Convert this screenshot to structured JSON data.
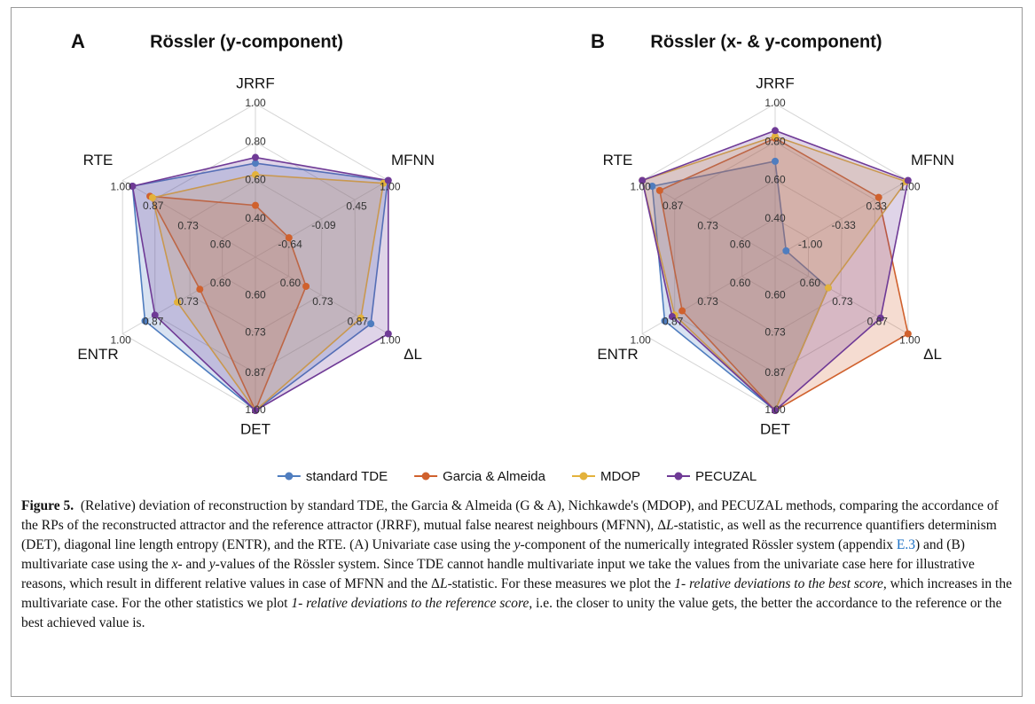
{
  "chart_data": [
    {
      "type": "radar",
      "panel": "A",
      "title": "Rössler (y-component)",
      "axes": [
        {
          "name": "JRRF",
          "lim": [
            0.2,
            1.0
          ],
          "ticks": [
            {
              "value": 0.4,
              "label": "0.40"
            },
            {
              "value": 0.6,
              "label": "0.60"
            },
            {
              "value": 0.8,
              "label": "0.80"
            },
            {
              "value": 1.0,
              "label": "1.00"
            }
          ]
        },
        {
          "name": "MFNN",
          "lim": [
            -1.18,
            1.0
          ],
          "ticks": [
            -0.64,
            -0.09,
            0.45,
            {
              "value": 1.0,
              "label": "1.00"
            }
          ]
        },
        {
          "name": "ΔL",
          "lim": [
            0.467,
            1.0
          ],
          "ticks": [
            {
              "value": 0.6,
              "label": "0.60"
            },
            0.73,
            0.87,
            {
              "value": 1.0,
              "label": "1.00"
            }
          ]
        },
        {
          "name": "DET",
          "lim": [
            0.467,
            1.0
          ],
          "ticks": [
            {
              "value": 0.6,
              "label": "0.60"
            },
            0.73,
            0.87,
            {
              "value": 1.0,
              "label": "1.00"
            }
          ]
        },
        {
          "name": "ENTR",
          "lim": [
            0.467,
            1.0
          ],
          "ticks": [
            {
              "value": 0.6,
              "label": "0.60"
            },
            0.73,
            0.87,
            {
              "value": 1.0,
              "label": "1.00"
            }
          ]
        },
        {
          "name": "RTE",
          "lim": [
            0.467,
            1.0
          ],
          "ticks": [
            {
              "value": 0.6,
              "label": "0.60"
            },
            0.73,
            0.87,
            {
              "value": 1.0,
              "label": "1.00"
            }
          ]
        }
      ],
      "series": [
        {
          "name": "standard TDE",
          "color": "#4f7dbf",
          "values": [
            0.69,
            0.99,
            0.93,
            1.0,
            0.91,
            0.96
          ]
        },
        {
          "name": "Garcia & Almeida",
          "color": "#d0612d",
          "values": [
            0.47,
            -0.63,
            0.67,
            1.0,
            0.69,
            0.89
          ]
        },
        {
          "name": "MDOP",
          "color": "#e3b23c",
          "values": [
            0.63,
            0.92,
            0.89,
            1.0,
            0.78,
            0.88
          ]
        },
        {
          "name": "PECUZAL",
          "color": "#6f3a96",
          "values": [
            0.72,
            1.0,
            1.0,
            1.0,
            0.87,
            0.96
          ]
        }
      ]
    },
    {
      "type": "radar",
      "panel": "B",
      "title": "Rössler (x- & y-component)",
      "axes": [
        {
          "name": "JRRF",
          "lim": [
            0.2,
            1.0
          ],
          "ticks": [
            {
              "value": 0.4,
              "label": "0.40"
            },
            {
              "value": 0.6,
              "label": "0.60"
            },
            {
              "value": 0.8,
              "label": "0.80"
            },
            {
              "value": 1.0,
              "label": "1.00"
            }
          ]
        },
        {
          "name": "MFNN",
          "lim": [
            -1.67,
            1.0
          ],
          "ticks": [
            {
              "value": -1.0,
              "label": "-1.00"
            },
            -0.33,
            0.33,
            {
              "value": 1.0,
              "label": "1.00"
            }
          ]
        },
        {
          "name": "ΔL",
          "lim": [
            0.467,
            1.0
          ],
          "ticks": [
            {
              "value": 0.6,
              "label": "0.60"
            },
            0.73,
            0.87,
            {
              "value": 1.0,
              "label": "1.00"
            }
          ]
        },
        {
          "name": "DET",
          "lim": [
            0.467,
            1.0
          ],
          "ticks": [
            {
              "value": 0.6,
              "label": "0.60"
            },
            0.73,
            0.87,
            {
              "value": 1.0,
              "label": "1.00"
            }
          ]
        },
        {
          "name": "ENTR",
          "lim": [
            0.467,
            1.0
          ],
          "ticks": [
            {
              "value": 0.6,
              "label": "0.60"
            },
            0.73,
            0.87,
            {
              "value": 1.0,
              "label": "1.00"
            }
          ]
        },
        {
          "name": "RTE",
          "lim": [
            0.467,
            1.0
          ],
          "ticks": [
            {
              "value": 0.6,
              "label": "0.60"
            },
            0.73,
            0.87,
            {
              "value": 1.0,
              "label": "1.00"
            }
          ]
        }
      ],
      "series": [
        {
          "name": "standard TDE",
          "color": "#4f7dbf",
          "values": [
            0.7,
            -1.45,
            0.68,
            1.0,
            0.91,
            0.96
          ]
        },
        {
          "name": "Garcia & Almeida",
          "color": "#d0612d",
          "values": [
            0.82,
            0.41,
            1.0,
            1.0,
            0.84,
            0.93
          ]
        },
        {
          "name": "MDOP",
          "color": "#e3b23c",
          "values": [
            0.83,
            0.96,
            0.68,
            1.0,
            0.87,
            1.0
          ]
        },
        {
          "name": "PECUZAL",
          "color": "#6f3a96",
          "values": [
            0.86,
            1.0,
            0.89,
            1.0,
            0.88,
            1.0
          ]
        }
      ]
    }
  ],
  "caption": {
    "label": "Figure 5.",
    "parts": [
      "(Relative) deviation of reconstruction by standard TDE, the Garcia & Almeida (G & A), Nichkawde's (MDOP), and PECUZAL methods, comparing the accordance of the RPs of the reconstructed attractor and the reference attractor (JRRF), mutual false nearest neighbours (MFNN), Δ",
      "L",
      "-statistic, as well as the recurrence quantifiers determinism (DET), diagonal line length entropy (ENTR), and the RTE. (A) Univariate case using the ",
      "y",
      "-component of the numerically integrated Rössler system (appendix ",
      "E.3",
      ") and (B) multivariate case using the ",
      "x",
      "- and ",
      "y",
      "-values of the Rössler system. Since TDE cannot handle multivariate input we take the values from the univariate case here for illustrative reasons, which result in different relative values in case of MFNN and the Δ",
      "L",
      "-statistic. For these measures we plot the ",
      "1- relative deviations to the best score",
      ", which increases in the multivariate case. For the other statistics we plot ",
      "1- relative deviations to the reference score",
      ", i.e. the closer to unity the value gets, the better the accordance to the reference or the best achieved value is."
    ]
  }
}
